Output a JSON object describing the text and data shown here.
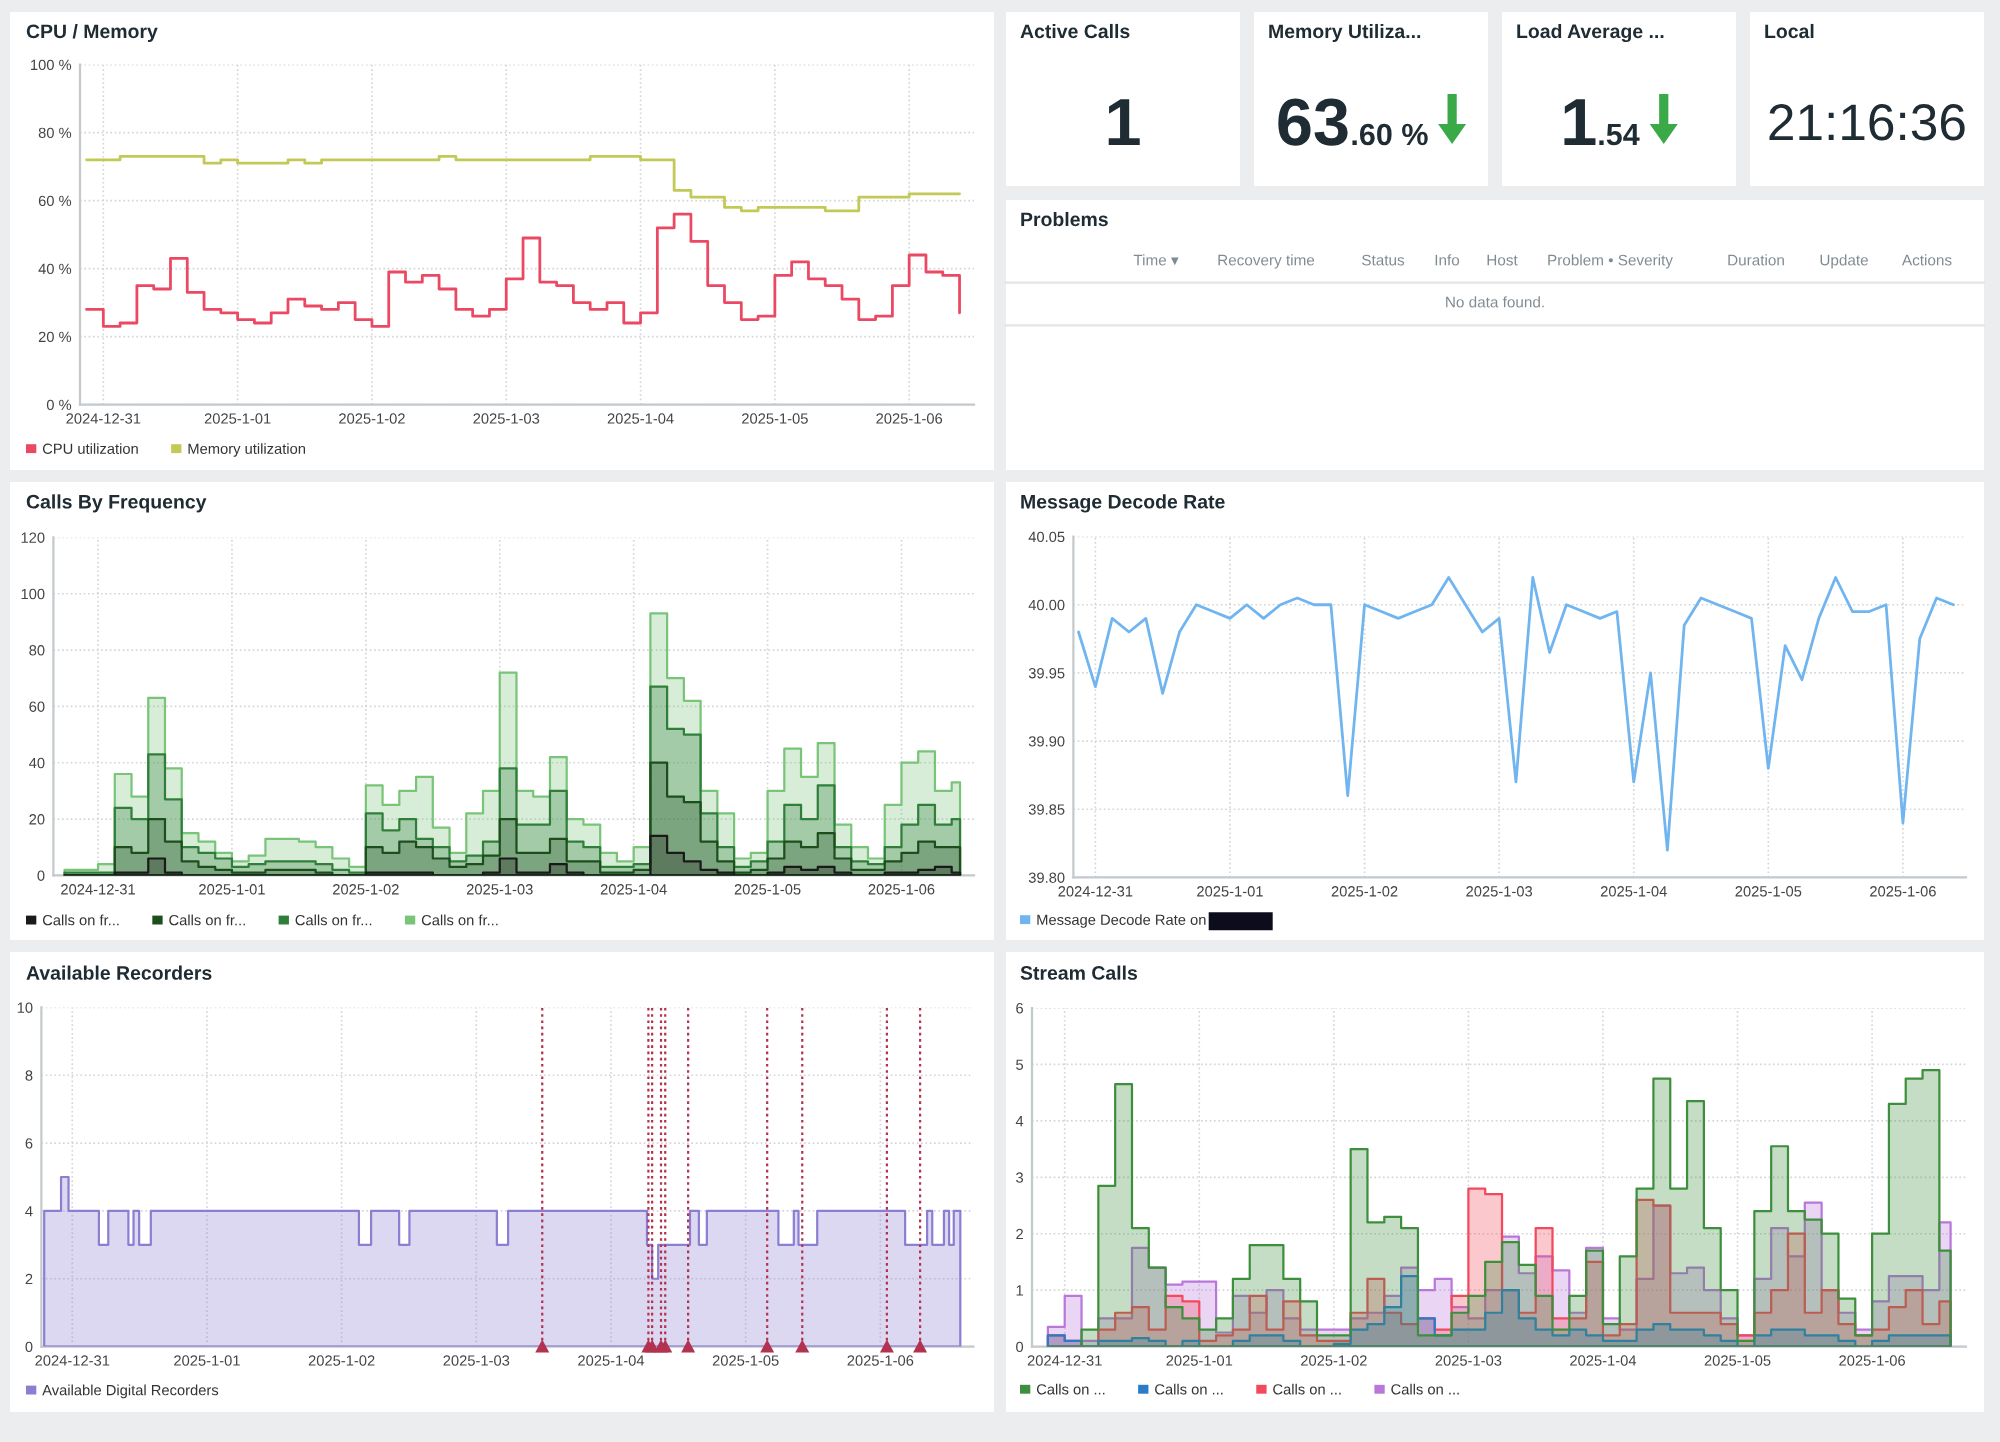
{
  "chart_data": [
    {
      "type": "step",
      "title": "CPU / Memory",
      "x": [
        "2024-12-30T21:00",
        "2024-12-31T00:00",
        "2024-12-31T03:00",
        "2024-12-31T06:00",
        "2024-12-31T09:00",
        "2024-12-31T12:00",
        "2024-12-31T15:00",
        "2024-12-31T18:00",
        "2024-12-31T21:00",
        "2025-01-01T00:00",
        "2025-01-01T03:00",
        "2025-01-01T06:00",
        "2025-01-01T09:00",
        "2025-01-01T12:00",
        "2025-01-01T15:00",
        "2025-01-01T18:00",
        "2025-01-01T21:00",
        "2025-01-02T00:00",
        "2025-01-02T03:00",
        "2025-01-02T06:00",
        "2025-01-02T09:00",
        "2025-01-02T12:00",
        "2025-01-02T15:00",
        "2025-01-02T18:00",
        "2025-01-02T21:00",
        "2025-01-03T00:00",
        "2025-01-03T03:00",
        "2025-01-03T06:00",
        "2025-01-03T09:00",
        "2025-01-03T12:00",
        "2025-01-03T15:00",
        "2025-01-03T18:00",
        "2025-01-03T21:00",
        "2025-01-04T00:00",
        "2025-01-04T03:00",
        "2025-01-04T06:00",
        "2025-01-04T09:00",
        "2025-01-04T12:00",
        "2025-01-04T15:00",
        "2025-01-04T18:00",
        "2025-01-04T21:00",
        "2025-01-05T00:00",
        "2025-01-05T03:00",
        "2025-01-05T06:00",
        "2025-01-05T09:00",
        "2025-01-05T12:00",
        "2025-01-05T15:00",
        "2025-01-05T18:00",
        "2025-01-05T21:00",
        "2025-01-06T00:00",
        "2025-01-06T03:00",
        "2025-01-06T06:00",
        "2025-01-06T09:00"
      ],
      "series": [
        {
          "name": "CPU utilization",
          "color": "#eb4863",
          "values": [
            28,
            23,
            24,
            35,
            34,
            43,
            33,
            28,
            27,
            25,
            24,
            27,
            31,
            29,
            28,
            30,
            25,
            23,
            39,
            36,
            38,
            34,
            28,
            26,
            28,
            37,
            49,
            36,
            35,
            30,
            28,
            30,
            24,
            27,
            52,
            56,
            48,
            35,
            30,
            25,
            26,
            38,
            42,
            37,
            35,
            31,
            25,
            26,
            35,
            44,
            39,
            38,
            27
          ]
        },
        {
          "name": "Memory utilization",
          "color": "#c2c957",
          "values": [
            72,
            72,
            73,
            73,
            73,
            73,
            73,
            71,
            72,
            71,
            71,
            71,
            72,
            71,
            72,
            72,
            72,
            72,
            72,
            72,
            72,
            73,
            72,
            72,
            72,
            72,
            72,
            72,
            72,
            72,
            73,
            73,
            73,
            72,
            72,
            63,
            61,
            61,
            58,
            57,
            58,
            58,
            58,
            58,
            57,
            57,
            61,
            61,
            61,
            62,
            62,
            62,
            62
          ]
        }
      ],
      "xlim": [
        "2024-12-30T19:50",
        "2025-01-06T11:35"
      ],
      "xticks": [
        {
          "value": "2024-12-31",
          "label": "2024-12-31"
        },
        {
          "value": "2025-01-01",
          "label": "2025-1-01"
        },
        {
          "value": "2025-01-02",
          "label": "2025-1-02"
        },
        {
          "value": "2025-01-03",
          "label": "2025-1-03"
        },
        {
          "value": "2025-01-04",
          "label": "2025-1-04"
        },
        {
          "value": "2025-01-05",
          "label": "2025-1-05"
        },
        {
          "value": "2025-01-06",
          "label": "2025-1-06"
        }
      ],
      "ylim": [
        0,
        100
      ],
      "yticks": [
        {
          "value": 0,
          "label": "0 %"
        },
        {
          "value": 20,
          "label": "20 %"
        },
        {
          "value": 40,
          "label": "40 %"
        },
        {
          "value": 60,
          "label": "60 %"
        },
        {
          "value": 80,
          "label": "80 %"
        },
        {
          "value": 100,
          "label": "100 %"
        }
      ],
      "grid": true,
      "legend": "bottom"
    },
    {
      "type": "other",
      "title": "Active Calls",
      "annotations": [
        "1"
      ]
    },
    {
      "type": "other",
      "title": "Memory Utiliza...",
      "annotations": [
        "63",
        ".60 %"
      ]
    },
    {
      "type": "other",
      "title": "Load Average ...",
      "annotations": [
        "1",
        ".54"
      ]
    },
    {
      "type": "other",
      "title": "Local",
      "annotations": [
        "21:16:36"
      ]
    },
    {
      "type": "other",
      "title": "Problems",
      "annotations": [
        "Time ▾",
        "Recovery time",
        "Status",
        "Info",
        "Host",
        "Problem • Severity",
        "Duration",
        "Update",
        "Actions",
        "No data found."
      ]
    },
    {
      "type": "area",
      "title": "Calls By Frequency",
      "x": [
        "2024-12-30T18:00",
        "2024-12-30T21:00",
        "2024-12-30T21:00",
        "2024-12-31T00:00",
        "2024-12-31T00:00",
        "2024-12-31T03:00",
        "2024-12-31T03:00",
        "2024-12-31T06:00",
        "2024-12-31T06:00",
        "2024-12-31T09:00",
        "2024-12-31T09:00",
        "2024-12-31T12:00",
        "2024-12-31T12:00",
        "2024-12-31T15:00",
        "2024-12-31T15:00",
        "2024-12-31T18:00",
        "2024-12-31T18:00",
        "2024-12-31T21:00",
        "2024-12-31T21:00",
        "2025-01-01T00:00",
        "2025-01-01T00:00",
        "2025-01-01T03:00",
        "2025-01-01T03:00",
        "2025-01-01T06:00",
        "2025-01-01T06:00",
        "2025-01-01T09:00",
        "2025-01-01T09:00",
        "2025-01-01T12:00",
        "2025-01-01T12:00",
        "2025-01-01T15:00",
        "2025-01-01T15:00",
        "2025-01-01T18:00",
        "2025-01-01T18:00",
        "2025-01-01T21:00",
        "2025-01-01T21:00",
        "2025-01-02T00:00",
        "2025-01-02T00:00",
        "2025-01-02T03:00",
        "2025-01-02T03:00",
        "2025-01-02T06:00",
        "2025-01-02T06:00",
        "2025-01-02T09:00",
        "2025-01-02T09:00",
        "2025-01-02T12:00",
        "2025-01-02T12:00",
        "2025-01-02T15:00",
        "2025-01-02T15:00",
        "2025-01-02T18:00",
        "2025-01-02T18:00",
        "2025-01-02T21:00",
        "2025-01-02T21:00",
        "2025-01-03T00:00",
        "2025-01-03T00:00",
        "2025-01-03T03:00",
        "2025-01-03T03:00",
        "2025-01-03T06:00",
        "2025-01-03T06:00",
        "2025-01-03T09:00",
        "2025-01-03T09:00",
        "2025-01-03T12:00",
        "2025-01-03T12:00",
        "2025-01-03T15:00",
        "2025-01-03T15:00",
        "2025-01-03T18:00",
        "2025-01-03T18:00",
        "2025-01-03T21:00",
        "2025-01-03T21:00",
        "2025-01-04T00:00",
        "2025-01-04T00:00",
        "2025-01-04T03:00",
        "2025-01-04T03:00",
        "2025-01-04T06:00",
        "2025-01-04T06:00",
        "2025-01-04T09:00",
        "2025-01-04T09:00",
        "2025-01-04T12:00",
        "2025-01-04T12:00",
        "2025-01-04T15:00",
        "2025-01-04T15:00",
        "2025-01-04T18:00",
        "2025-01-04T18:00",
        "2025-01-04T21:00",
        "2025-01-04T21:00",
        "2025-01-05T00:00",
        "2025-01-05T00:00",
        "2025-01-05T03:00",
        "2025-01-05T03:00",
        "2025-01-05T06:00",
        "2025-01-05T06:00",
        "2025-01-05T09:00",
        "2025-01-05T09:00",
        "2025-01-05T12:00",
        "2025-01-05T12:00",
        "2025-01-05T15:00",
        "2025-01-05T15:00",
        "2025-01-05T18:00",
        "2025-01-05T18:00",
        "2025-01-05T21:00",
        "2025-01-05T21:00",
        "2025-01-06T00:00",
        "2025-01-06T00:00",
        "2025-01-06T03:00",
        "2025-01-06T03:00",
        "2025-01-06T06:00",
        "2025-01-06T06:00",
        "2025-01-06T09:00",
        "2025-01-06T09:00",
        "2025-01-06T10:30"
      ],
      "series": [
        {
          "name": "Calls on fr...",
          "color": "#1a1a1a",
          "values": [
            0,
            0,
            0,
            0,
            0,
            0,
            1,
            1,
            1,
            1,
            6,
            6,
            1,
            1,
            0,
            0,
            0,
            0,
            0,
            0,
            0,
            0,
            0,
            0,
            0,
            0,
            0,
            0,
            0,
            0,
            0,
            0,
            0,
            0,
            0,
            0,
            1,
            1,
            1,
            1,
            1,
            1,
            1,
            1,
            0,
            0,
            0,
            0,
            0,
            0,
            1,
            1,
            6,
            6,
            1,
            1,
            1,
            1,
            4,
            4,
            1,
            1,
            0,
            0,
            0,
            0,
            0,
            0,
            0,
            0,
            14,
            14,
            8,
            8,
            5,
            5,
            2,
            2,
            1,
            1,
            0,
            0,
            0,
            0,
            1,
            1,
            3,
            3,
            2,
            2,
            3,
            3,
            1,
            1,
            0,
            0,
            0,
            0,
            1,
            1,
            1,
            1,
            2,
            2,
            3,
            3,
            1,
            1
          ]
        },
        {
          "name": "Calls on fr...",
          "color": "#1d4f1d",
          "values": [
            0,
            0,
            0,
            0,
            0,
            0,
            10,
            10,
            8,
            8,
            20,
            20,
            12,
            12,
            5,
            5,
            3,
            3,
            2,
            2,
            1,
            1,
            1,
            1,
            2,
            2,
            2,
            2,
            2,
            2,
            1,
            1,
            0,
            0,
            0,
            0,
            10,
            10,
            8,
            8,
            12,
            12,
            10,
            10,
            6,
            6,
            3,
            3,
            4,
            4,
            7,
            7,
            20,
            20,
            8,
            8,
            8,
            8,
            13,
            13,
            5,
            5,
            5,
            5,
            1,
            1,
            1,
            1,
            2,
            2,
            40,
            40,
            28,
            28,
            26,
            26,
            12,
            12,
            5,
            5,
            1,
            1,
            2,
            2,
            6,
            6,
            12,
            12,
            10,
            10,
            15,
            15,
            6,
            6,
            2,
            2,
            2,
            2,
            5,
            5,
            8,
            8,
            12,
            12,
            10,
            10,
            10,
            10
          ]
        },
        {
          "name": "Calls on fr...",
          "color": "#2f7f3a",
          "values": [
            1,
            1,
            1,
            1,
            1,
            1,
            24,
            24,
            20,
            20,
            43,
            43,
            27,
            27,
            10,
            10,
            8,
            8,
            6,
            6,
            3,
            3,
            4,
            4,
            5,
            5,
            5,
            5,
            5,
            5,
            4,
            4,
            2,
            2,
            1,
            1,
            22,
            22,
            16,
            16,
            20,
            20,
            13,
            13,
            10,
            10,
            5,
            5,
            7,
            7,
            12,
            12,
            38,
            38,
            18,
            18,
            18,
            18,
            30,
            30,
            12,
            12,
            10,
            10,
            3,
            3,
            3,
            3,
            4,
            4,
            67,
            67,
            52,
            52,
            50,
            50,
            22,
            22,
            10,
            10,
            3,
            3,
            5,
            5,
            12,
            12,
            25,
            25,
            20,
            20,
            32,
            32,
            10,
            10,
            5,
            5,
            4,
            4,
            10,
            10,
            18,
            18,
            25,
            25,
            18,
            18,
            20,
            20
          ]
        },
        {
          "name": "Calls on fr...",
          "color": "#79c479",
          "values": [
            2,
            2,
            2,
            2,
            4,
            4,
            36,
            36,
            28,
            28,
            63,
            63,
            38,
            38,
            15,
            15,
            12,
            12,
            8,
            8,
            5,
            5,
            7,
            7,
            13,
            13,
            13,
            13,
            12,
            12,
            10,
            10,
            6,
            6,
            3,
            3,
            32,
            32,
            25,
            25,
            30,
            30,
            35,
            35,
            17,
            17,
            8,
            8,
            22,
            22,
            30,
            30,
            72,
            72,
            30,
            30,
            28,
            28,
            42,
            42,
            20,
            20,
            18,
            18,
            8,
            8,
            5,
            5,
            10,
            10,
            93,
            93,
            70,
            70,
            62,
            62,
            30,
            30,
            22,
            22,
            6,
            6,
            8,
            8,
            30,
            30,
            45,
            45,
            35,
            35,
            47,
            47,
            18,
            18,
            10,
            10,
            6,
            6,
            25,
            25,
            40,
            40,
            44,
            44,
            30,
            30,
            33,
            33
          ]
        }
      ],
      "xlim": [
        "2024-12-30T16:00",
        "2025-01-06T13:00"
      ],
      "xticks": [
        {
          "value": "2024-12-31",
          "label": "2024-12-31"
        },
        {
          "value": "2025-01-01",
          "label": "2025-1-01"
        },
        {
          "value": "2025-01-02",
          "label": "2025-1-02"
        },
        {
          "value": "2025-01-03",
          "label": "2025-1-03"
        },
        {
          "value": "2025-01-04",
          "label": "2025-1-04"
        },
        {
          "value": "2025-01-05",
          "label": "2025-1-05"
        },
        {
          "value": "2025-01-06",
          "label": "2025-1-06"
        }
      ],
      "ylim": [
        0,
        120
      ],
      "yticks": [
        0,
        20,
        40,
        60,
        80,
        100,
        120
      ],
      "grid": true,
      "legend": "bottom"
    },
    {
      "type": "line",
      "title": "Message Decode Rate",
      "x": [
        "2024-12-30T21:00",
        "2024-12-31T00:00",
        "2024-12-31T03:00",
        "2024-12-31T06:00",
        "2024-12-31T09:00",
        "2024-12-31T12:00",
        "2024-12-31T15:00",
        "2024-12-31T18:00",
        "2024-12-31T21:00",
        "2025-01-01T00:00",
        "2025-01-01T03:00",
        "2025-01-01T06:00",
        "2025-01-01T09:00",
        "2025-01-01T12:00",
        "2025-01-01T15:00",
        "2025-01-01T18:00",
        "2025-01-01T21:00",
        "2025-01-02T00:00",
        "2025-01-02T03:00",
        "2025-01-02T06:00",
        "2025-01-02T09:00",
        "2025-01-02T12:00",
        "2025-01-02T15:00",
        "2025-01-02T18:00",
        "2025-01-02T21:00",
        "2025-01-03T00:00",
        "2025-01-03T03:00",
        "2025-01-03T06:00",
        "2025-01-03T09:00",
        "2025-01-03T12:00",
        "2025-01-03T15:00",
        "2025-01-03T18:00",
        "2025-01-03T21:00",
        "2025-01-04T00:00",
        "2025-01-04T03:00",
        "2025-01-04T06:00",
        "2025-01-04T09:00",
        "2025-01-04T12:00",
        "2025-01-04T15:00",
        "2025-01-04T18:00",
        "2025-01-04T21:00",
        "2025-01-05T00:00",
        "2025-01-05T03:00",
        "2025-01-05T06:00",
        "2025-01-05T09:00",
        "2025-01-05T12:00",
        "2025-01-05T15:00",
        "2025-01-05T18:00",
        "2025-01-05T21:00",
        "2025-01-06T00:00",
        "2025-01-06T03:00",
        "2025-01-06T06:00",
        "2025-01-06T09:00"
      ],
      "series": [
        {
          "name": "Message Decode Rate on",
          "color": "#70b5f0",
          "values": [
            39.98,
            39.94,
            39.99,
            39.98,
            39.99,
            39.935,
            39.98,
            40.0,
            39.995,
            39.99,
            40.0,
            39.99,
            40.0,
            40.005,
            40.0,
            40.0,
            39.86,
            40.0,
            39.995,
            39.99,
            39.995,
            40.0,
            40.02,
            40.0,
            39.98,
            39.99,
            39.87,
            40.02,
            39.965,
            40.0,
            39.995,
            39.99,
            39.995,
            39.87,
            39.95,
            39.82,
            39.985,
            40.005,
            40.0,
            39.995,
            39.99,
            39.88,
            39.97,
            39.945,
            39.99,
            40.02,
            39.995,
            39.995,
            40.0,
            39.84,
            39.975,
            40.005,
            40.0
          ]
        }
      ],
      "xlim": [
        "2024-12-30T20:05",
        "2025-01-06T11:15"
      ],
      "xticks": [
        {
          "value": "2024-12-31",
          "label": "2024-12-31"
        },
        {
          "value": "2025-01-01",
          "label": "2025-1-01"
        },
        {
          "value": "2025-01-02",
          "label": "2025-1-02"
        },
        {
          "value": "2025-01-03",
          "label": "2025-1-03"
        },
        {
          "value": "2025-01-04",
          "label": "2025-1-04"
        },
        {
          "value": "2025-01-05",
          "label": "2025-1-05"
        },
        {
          "value": "2025-01-06",
          "label": "2025-1-06"
        }
      ],
      "ylim": [
        39.8,
        40.05
      ],
      "yticks": [
        {
          "value": 39.8,
          "label": "39.80"
        },
        {
          "value": 39.85,
          "label": "39.85"
        },
        {
          "value": 39.9,
          "label": "39.90"
        },
        {
          "value": 39.95,
          "label": "39.95"
        },
        {
          "value": 40.0,
          "label": "40.00"
        },
        {
          "value": 40.05,
          "label": "40.05"
        }
      ],
      "grid": true,
      "legend": "bottom"
    },
    {
      "type": "area",
      "title": "Available Recorders",
      "series": [
        {
          "name": "Available Digital Recorders",
          "color": "#8b7fd1",
          "x": [
            "2024-12-30T19:00",
            "2024-12-30T22:00",
            "2024-12-30T22:00",
            "2024-12-30T23:20",
            "2024-12-30T23:20",
            "2024-12-31T04:45",
            "2024-12-31T04:45",
            "2024-12-31T06:25",
            "2024-12-31T06:25",
            "2024-12-31T10:00",
            "2024-12-31T10:00",
            "2024-12-31T10:55",
            "2024-12-31T10:55",
            "2024-12-31T11:55",
            "2024-12-31T11:55",
            "2024-12-31T14:00",
            "2024-12-31T14:00",
            "2025-01-02T03:05",
            "2025-01-02T03:05",
            "2025-01-02T05:15",
            "2025-01-02T05:15",
            "2025-01-02T10:15",
            "2025-01-02T10:15",
            "2025-01-02T12:05",
            "2025-01-02T12:05",
            "2025-01-03T03:40",
            "2025-01-03T03:40",
            "2025-01-03T05:40",
            "2025-01-03T05:40",
            "2025-01-04T06:25",
            "2025-01-04T06:25",
            "2025-01-04T07:20",
            "2025-01-04T07:20",
            "2025-01-04T08:25",
            "2025-01-04T08:25",
            "2025-01-04T14:05",
            "2025-01-04T14:05",
            "2025-01-04T15:40",
            "2025-01-04T15:40",
            "2025-01-04T17:05",
            "2025-01-04T17:05",
            "2025-01-05T05:50",
            "2025-01-05T05:50",
            "2025-01-05T08:35",
            "2025-01-05T08:35",
            "2025-01-05T09:25",
            "2025-01-05T09:25",
            "2025-01-05T12:45",
            "2025-01-05T12:45",
            "2025-01-06T04:25",
            "2025-01-06T04:25",
            "2025-01-06T08:20",
            "2025-01-06T08:20",
            "2025-01-06T09:15",
            "2025-01-06T09:15",
            "2025-01-06T11:20",
            "2025-01-06T11:20",
            "2025-01-06T12:15",
            "2025-01-06T12:15",
            "2025-01-06T13:05",
            "2025-01-06T13:05",
            "2025-01-06T14:15"
          ],
          "values": [
            4,
            4,
            5,
            5,
            4,
            4,
            3,
            3,
            4,
            4,
            3,
            3,
            4,
            4,
            3,
            3,
            4,
            4,
            3,
            3,
            4,
            4,
            3,
            3,
            4,
            4,
            3,
            3,
            4,
            4,
            3,
            3,
            2,
            2,
            3,
            3,
            4,
            4,
            3,
            3,
            4,
            4,
            3,
            3,
            4,
            4,
            3,
            3,
            4,
            4,
            3,
            3,
            4,
            4,
            3,
            3,
            4,
            4,
            3,
            3,
            4,
            4
          ]
        }
      ],
      "xlim": [
        "2024-12-30T18:30",
        "2025-01-06T16:35"
      ],
      "xticks": [
        {
          "value": "2024-12-31",
          "label": "2024-12-31"
        },
        {
          "value": "2025-01-01",
          "label": "2025-1-01"
        },
        {
          "value": "2025-01-02",
          "label": "2025-1-02"
        },
        {
          "value": "2025-01-03",
          "label": "2025-1-03"
        },
        {
          "value": "2025-01-04",
          "label": "2025-1-04"
        },
        {
          "value": "2025-01-05",
          "label": "2025-1-05"
        },
        {
          "value": "2025-01-06",
          "label": "2025-1-06"
        }
      ],
      "ylim": [
        0,
        10
      ],
      "yticks": [
        0,
        2,
        4,
        6,
        8,
        10
      ],
      "grid": true,
      "legend": "bottom",
      "ref_lines": [
        {
          "axis": "x",
          "value": "2025-01-03T11:45",
          "color": "#b2324f",
          "line_style": "dotted"
        },
        {
          "axis": "x",
          "value": "2025-01-04T06:40",
          "color": "#b2324f",
          "line_style": "dotted"
        },
        {
          "axis": "x",
          "value": "2025-01-04T07:20",
          "color": "#b2324f",
          "line_style": "dotted"
        },
        {
          "axis": "x",
          "value": "2025-01-04T08:55",
          "color": "#b2324f",
          "line_style": "dotted"
        },
        {
          "axis": "x",
          "value": "2025-01-04T09:40",
          "color": "#b2324f",
          "line_style": "dotted"
        },
        {
          "axis": "x",
          "value": "2025-01-04T13:45",
          "color": "#b2324f",
          "line_style": "dotted"
        },
        {
          "axis": "x",
          "value": "2025-01-05T03:50",
          "color": "#b2324f",
          "line_style": "dotted"
        },
        {
          "axis": "x",
          "value": "2025-01-05T10:05",
          "color": "#b2324f",
          "line_style": "dotted"
        },
        {
          "axis": "x",
          "value": "2025-01-06T01:10",
          "color": "#b2324f",
          "line_style": "dotted"
        },
        {
          "axis": "x",
          "value": "2025-01-06T07:05",
          "color": "#b2324f",
          "line_style": "dotted"
        }
      ]
    },
    {
      "type": "area",
      "title": "Stream Calls",
      "x": [
        "2024-12-30T21:00",
        "2024-12-31T00:00",
        "2024-12-31T00:00",
        "2024-12-31T03:00",
        "2024-12-31T03:00",
        "2024-12-31T06:00",
        "2024-12-31T06:00",
        "2024-12-31T09:00",
        "2024-12-31T09:00",
        "2024-12-31T12:00",
        "2024-12-31T12:00",
        "2024-12-31T15:00",
        "2024-12-31T15:00",
        "2024-12-31T18:00",
        "2024-12-31T18:00",
        "2024-12-31T21:00",
        "2024-12-31T21:00",
        "2025-01-01T00:00",
        "2025-01-01T00:00",
        "2025-01-01T03:00",
        "2025-01-01T03:00",
        "2025-01-01T06:00",
        "2025-01-01T06:00",
        "2025-01-01T09:00",
        "2025-01-01T09:00",
        "2025-01-01T12:00",
        "2025-01-01T12:00",
        "2025-01-01T15:00",
        "2025-01-01T15:00",
        "2025-01-01T18:00",
        "2025-01-01T18:00",
        "2025-01-01T21:00",
        "2025-01-01T21:00",
        "2025-01-02T00:00",
        "2025-01-02T00:00",
        "2025-01-02T03:00",
        "2025-01-02T03:00",
        "2025-01-02T06:00",
        "2025-01-02T06:00",
        "2025-01-02T09:00",
        "2025-01-02T09:00",
        "2025-01-02T12:00",
        "2025-01-02T12:00",
        "2025-01-02T15:00",
        "2025-01-02T15:00",
        "2025-01-02T18:00",
        "2025-01-02T18:00",
        "2025-01-02T21:00",
        "2025-01-02T21:00",
        "2025-01-03T00:00",
        "2025-01-03T00:00",
        "2025-01-03T03:00",
        "2025-01-03T03:00",
        "2025-01-03T06:00",
        "2025-01-03T06:00",
        "2025-01-03T09:00",
        "2025-01-03T09:00",
        "2025-01-03T12:00",
        "2025-01-03T12:00",
        "2025-01-03T15:00",
        "2025-01-03T15:00",
        "2025-01-03T18:00",
        "2025-01-03T18:00",
        "2025-01-03T21:00",
        "2025-01-03T21:00",
        "2025-01-04T00:00",
        "2025-01-04T00:00",
        "2025-01-04T03:00",
        "2025-01-04T03:00",
        "2025-01-04T06:00",
        "2025-01-04T06:00",
        "2025-01-04T09:00",
        "2025-01-04T09:00",
        "2025-01-04T12:00",
        "2025-01-04T12:00",
        "2025-01-04T15:00",
        "2025-01-04T15:00",
        "2025-01-04T18:00",
        "2025-01-04T18:00",
        "2025-01-04T21:00",
        "2025-01-04T21:00",
        "2025-01-05T00:00",
        "2025-01-05T00:00",
        "2025-01-05T03:00",
        "2025-01-05T03:00",
        "2025-01-05T06:00",
        "2025-01-05T06:00",
        "2025-01-05T09:00",
        "2025-01-05T09:00",
        "2025-01-05T12:00",
        "2025-01-05T12:00",
        "2025-01-05T15:00",
        "2025-01-05T15:00",
        "2025-01-05T18:00",
        "2025-01-05T18:00",
        "2025-01-05T21:00",
        "2025-01-05T21:00",
        "2025-01-06T00:00",
        "2025-01-06T00:00",
        "2025-01-06T03:00",
        "2025-01-06T03:00",
        "2025-01-06T06:00",
        "2025-01-06T06:00",
        "2025-01-06T09:00",
        "2025-01-06T09:00",
        "2025-01-06T12:00",
        "2025-01-06T12:00",
        "2025-01-06T14:00"
      ],
      "series": [
        {
          "name": "Calls on ...",
          "color": "#3d8f3d",
          "values": [
            0,
            0,
            0,
            0,
            0.3,
            0.3,
            2.85,
            2.85,
            4.65,
            4.65,
            2.1,
            2.1,
            1.4,
            1.4,
            0.7,
            0.7,
            0.5,
            0.5,
            0.3,
            0.3,
            0.5,
            0.5,
            1.2,
            1.2,
            1.8,
            1.8,
            1.8,
            1.8,
            1.2,
            1.2,
            0.8,
            0.8,
            0.2,
            0.2,
            0.2,
            0.2,
            3.5,
            3.5,
            2.2,
            2.2,
            2.3,
            2.3,
            2.1,
            2.1,
            0.2,
            0.2,
            0.2,
            0.2,
            0.6,
            0.6,
            0.9,
            0.9,
            1.5,
            1.5,
            1.85,
            1.85,
            1.45,
            1.45,
            0.9,
            0.9,
            0.3,
            0.3,
            0.9,
            0.9,
            1.7,
            1.7,
            0.4,
            0.4,
            1.6,
            1.6,
            2.8,
            2.8,
            4.75,
            4.75,
            2.8,
            2.8,
            4.35,
            4.35,
            2.1,
            2.1,
            1.0,
            1.0,
            0.1,
            0.1,
            2.4,
            2.4,
            3.55,
            3.55,
            2.4,
            2.4,
            2.25,
            2.25,
            2.0,
            2.0,
            0.85,
            0.85,
            0.2,
            0.2,
            2.0,
            2.0,
            4.3,
            4.3,
            4.75,
            4.75,
            4.9,
            4.9,
            1.7,
            1.7
          ]
        },
        {
          "name": "Calls on ...",
          "color": "#2a7cc7",
          "values": [
            0.2,
            0.2,
            0.1,
            0.1,
            0,
            0,
            0.1,
            0.1,
            0.1,
            0.1,
            0.15,
            0.15,
            0.1,
            0.1,
            0,
            0,
            0.1,
            0.1,
            0,
            0,
            0,
            0,
            0.1,
            0.1,
            0.2,
            0.2,
            0.2,
            0.2,
            0.1,
            0.1,
            0,
            0,
            0,
            0,
            0.05,
            0.05,
            0.3,
            0.3,
            0.4,
            0.4,
            0.7,
            0.7,
            1.25,
            1.25,
            0.5,
            0.5,
            0.2,
            0.2,
            0.3,
            0.3,
            0.3,
            0.3,
            0.6,
            0.6,
            1.0,
            1.0,
            0.5,
            0.5,
            0.3,
            0.3,
            0.2,
            0.2,
            0.3,
            0.3,
            0.2,
            0.2,
            0.1,
            0.1,
            0.1,
            0.1,
            0.3,
            0.3,
            0.4,
            0.4,
            0.3,
            0.3,
            0.3,
            0.3,
            0.2,
            0.2,
            0.1,
            0.1,
            0,
            0,
            0.2,
            0.2,
            0.3,
            0.3,
            0.3,
            0.3,
            0.2,
            0.2,
            0.2,
            0.2,
            0.1,
            0.1,
            0,
            0,
            0.1,
            0.1,
            0.2,
            0.2,
            0.2,
            0.2,
            0.2,
            0.2,
            0.2,
            0.2
          ]
        },
        {
          "name": "Calls on ...",
          "color": "#f2495c",
          "values": [
            0.2,
            0.2,
            0.1,
            0.1,
            0,
            0,
            0.3,
            0.3,
            0.6,
            0.6,
            0.7,
            0.7,
            0.3,
            0.3,
            0.9,
            0.9,
            0.8,
            0.8,
            0.1,
            0.1,
            0.2,
            0.2,
            0.3,
            0.3,
            0.9,
            0.9,
            0.3,
            0.3,
            0.8,
            0.8,
            0.2,
            0.2,
            0.1,
            0.1,
            0.1,
            0.1,
            0.6,
            0.6,
            1.2,
            1.2,
            0.6,
            0.6,
            0.4,
            0.4,
            0.5,
            0.5,
            0.3,
            0.3,
            0.9,
            0.9,
            2.8,
            2.8,
            2.7,
            2.7,
            1.0,
            1.0,
            0.6,
            0.6,
            2.1,
            2.1,
            0.5,
            0.5,
            0.5,
            0.5,
            1.5,
            1.5,
            0.2,
            0.2,
            0.4,
            0.4,
            2.6,
            2.6,
            2.5,
            2.5,
            0.6,
            0.6,
            0.6,
            0.6,
            0.6,
            0.6,
            0.4,
            0.4,
            0.2,
            0.2,
            0.6,
            0.6,
            1.0,
            1.0,
            2.0,
            2.0,
            0.6,
            0.6,
            1.0,
            1.0,
            0.4,
            0.4,
            0.2,
            0.2,
            0.3,
            0.3,
            0.7,
            0.7,
            1.0,
            1.0,
            0.4,
            0.4,
            0.8,
            0.8
          ]
        },
        {
          "name": "Calls on ...",
          "color": "#b877d9",
          "values": [
            0.35,
            0.35,
            0.9,
            0.9,
            0.1,
            0.1,
            0.5,
            0.5,
            0.5,
            0.5,
            1.75,
            1.75,
            1.4,
            1.4,
            1.1,
            1.1,
            1.15,
            1.15,
            1.15,
            1.15,
            0.25,
            0.25,
            0.9,
            0.9,
            0.6,
            0.6,
            1.0,
            1.0,
            0.5,
            0.5,
            0.3,
            0.3,
            0.3,
            0.3,
            0.3,
            0.3,
            0.5,
            0.5,
            0.6,
            0.6,
            0.9,
            0.9,
            1.4,
            1.4,
            1.0,
            1.0,
            1.2,
            1.2,
            0.7,
            0.7,
            0.5,
            0.5,
            1.0,
            1.0,
            1.95,
            1.95,
            1.3,
            1.3,
            1.6,
            1.6,
            1.35,
            1.35,
            0.6,
            0.6,
            1.75,
            1.75,
            0.5,
            0.5,
            0.3,
            0.3,
            1.2,
            1.2,
            2.5,
            2.5,
            1.3,
            1.3,
            1.4,
            1.4,
            1.0,
            1.0,
            0.5,
            0.5,
            0.2,
            0.2,
            1.2,
            1.2,
            2.1,
            2.1,
            1.6,
            1.6,
            2.55,
            2.55,
            1.0,
            1.0,
            0.6,
            0.6,
            0.3,
            0.3,
            0.8,
            0.8,
            1.25,
            1.25,
            1.25,
            1.25,
            1.0,
            1.0,
            2.2,
            2.2
          ]
        }
      ],
      "xlim": [
        "2024-12-30T18:10",
        "2025-01-06T16:45"
      ],
      "xticks": [
        {
          "value": "2024-12-31",
          "label": "2024-12-31"
        },
        {
          "value": "2025-01-01",
          "label": "2025-1-01"
        },
        {
          "value": "2025-01-02",
          "label": "2025-1-02"
        },
        {
          "value": "2025-01-03",
          "label": "2025-1-03"
        },
        {
          "value": "2025-01-04",
          "label": "2025-1-04"
        },
        {
          "value": "2025-01-05",
          "label": "2025-1-05"
        },
        {
          "value": "2025-01-06",
          "label": "2025-1-06"
        }
      ],
      "ylim": [
        0,
        6
      ],
      "yticks": [
        0,
        1,
        2,
        3,
        4,
        5,
        6
      ],
      "grid": true,
      "legend": "bottom"
    }
  ]
}
